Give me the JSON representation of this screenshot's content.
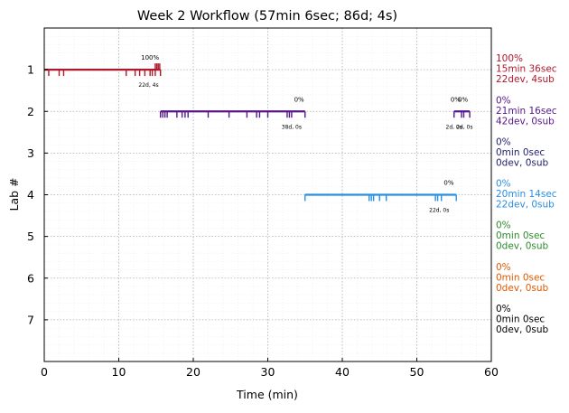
{
  "chart_data": {
    "type": "timeline",
    "title": "Week 2 Workflow (57min 6sec; 86d; 4s)",
    "xlabel": "Time (min)",
    "ylabel": "Lab #",
    "xlim": [
      0,
      60
    ],
    "ylim": [
      8,
      0
    ],
    "x_ticks": [
      0,
      10,
      20,
      30,
      40,
      50,
      60
    ],
    "y_ticks": [
      1,
      2,
      3,
      4,
      5,
      6,
      7
    ],
    "grid": true,
    "minor_grid": true,
    "segments": [
      {
        "lab": 1,
        "start": 0.0,
        "end": 15.6,
        "color": "#b2182b",
        "pct_label": "100%",
        "pct_x": 14.2,
        "count_label": "22d, 4s",
        "count_x": 14.0,
        "ticks": [
          0.6,
          2.0,
          2.6,
          11.0,
          12.2,
          12.8,
          13.5,
          14.2,
          14.5,
          14.9,
          15.6
        ],
        "up_ticks": [
          14.9,
          15.1,
          15.3,
          15.5
        ]
      },
      {
        "lab": 2,
        "start": 15.6,
        "end": 35.0,
        "color": "#54178a",
        "pct_label": "0%",
        "pct_x": 34.2,
        "count_label": "38d, 0s",
        "count_x": 33.2,
        "ticks": [
          15.6,
          15.9,
          16.2,
          16.5,
          17.8,
          18.5,
          18.9,
          19.3,
          22.0,
          24.8,
          27.2,
          28.5,
          28.9,
          30.0,
          32.6,
          32.9,
          33.2,
          35.0
        ],
        "up_ticks": []
      },
      {
        "lab": 2,
        "start": 55.0,
        "end": 57.1,
        "color": "#54178a",
        "pct_label": "0%",
        "pct_x": 55.2,
        "count_label": "2d, 0s",
        "count_x": 55.0,
        "pct_label2": "0%",
        "pct_x2": 56.2,
        "count_label2": "2d, 0s",
        "count_x2": 56.4,
        "ticks": [
          55.0,
          56.0,
          56.3,
          57.1
        ],
        "up_ticks": []
      },
      {
        "lab": 4,
        "start": 35.0,
        "end": 55.3,
        "color": "#2b8fe0",
        "pct_label": "0%",
        "pct_x": 54.3,
        "count_label": "22d, 0s",
        "count_x": 53.0,
        "ticks": [
          35.0,
          43.6,
          43.9,
          44.2,
          45.0,
          45.9,
          52.5,
          52.8,
          53.3,
          55.3
        ],
        "up_ticks": []
      }
    ],
    "side_labels": [
      {
        "lab": 1,
        "color": "#b2182b",
        "lines": [
          "100%",
          "15min 36sec",
          "22dev, 4sub"
        ]
      },
      {
        "lab": 2,
        "color": "#54178a",
        "lines": [
          "0%",
          "21min 16sec",
          "42dev, 0sub"
        ]
      },
      {
        "lab": 3,
        "color": "#1f1f6b",
        "lines": [
          "0%",
          "0min 0sec",
          "0dev, 0sub"
        ]
      },
      {
        "lab": 4,
        "color": "#2b8fe0",
        "lines": [
          "0%",
          "20min 14sec",
          "22dev, 0sub"
        ]
      },
      {
        "lab": 5,
        "color": "#2e8b2e",
        "lines": [
          "0%",
          "0min 0sec",
          "0dev, 0sub"
        ]
      },
      {
        "lab": 6,
        "color": "#e05a00",
        "lines": [
          "0%",
          "0min 0sec",
          "0dev, 0sub"
        ]
      },
      {
        "lab": 7,
        "color": "#000000",
        "lines": [
          "0%",
          "0min 0sec",
          "0dev, 0sub"
        ]
      }
    ]
  }
}
